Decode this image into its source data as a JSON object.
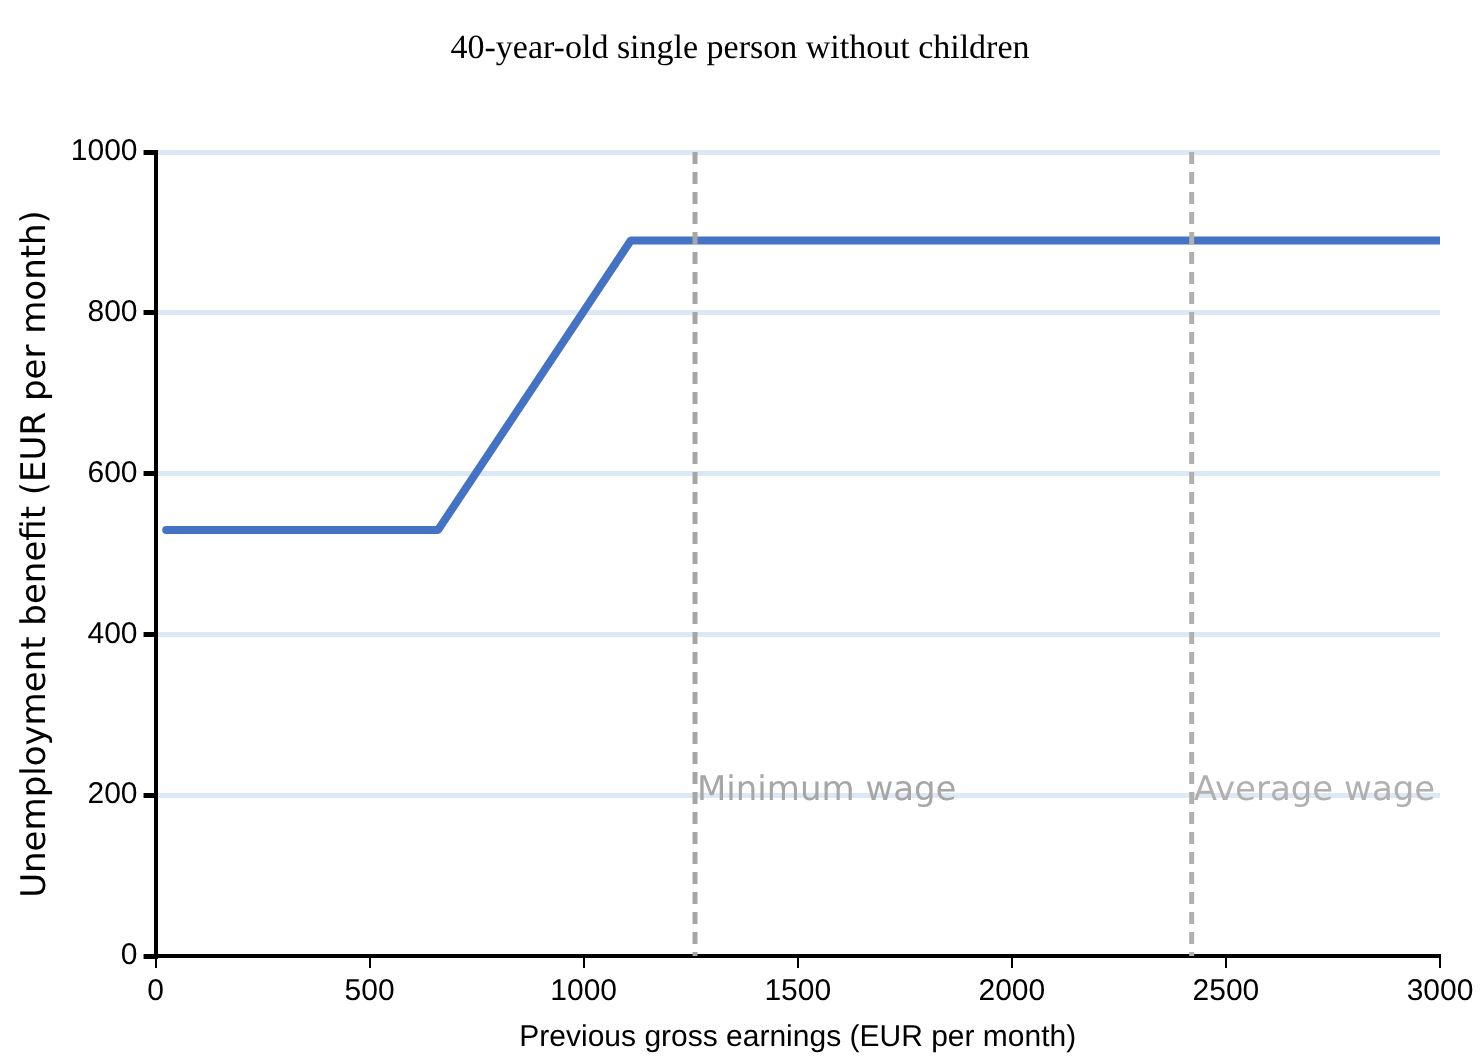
{
  "chart_data": {
    "type": "line",
    "title": "40-year-old single person without children",
    "xlabel": "Previous gross earnings (EUR per month)",
    "ylabel": "Unemployment benefit (EUR per month)",
    "x": [
      25,
      660,
      1110,
      3000
    ],
    "series": [
      {
        "color": "#4472c4",
        "values": [
          530,
          530,
          890,
          890
        ]
      }
    ],
    "xlim": [
      0,
      3000
    ],
    "xticks": [
      0,
      500,
      1000,
      1500,
      2000,
      2500,
      3000
    ],
    "ylim": [
      0,
      1000
    ],
    "yticks": [
      0,
      200,
      400,
      600,
      800,
      1000
    ],
    "grid": "y",
    "legend": false,
    "marker": "none",
    "line_style": "solid",
    "ref_lines": [
      {
        "axis": "x",
        "value": 1260,
        "label": "Minimum wage",
        "color": "#a6a6a6",
        "line_style": "dashed"
      },
      {
        "axis": "x",
        "value": 2420,
        "label": "Average wage",
        "color": "#b0b0b0",
        "line_style": "dashed"
      }
    ]
  }
}
